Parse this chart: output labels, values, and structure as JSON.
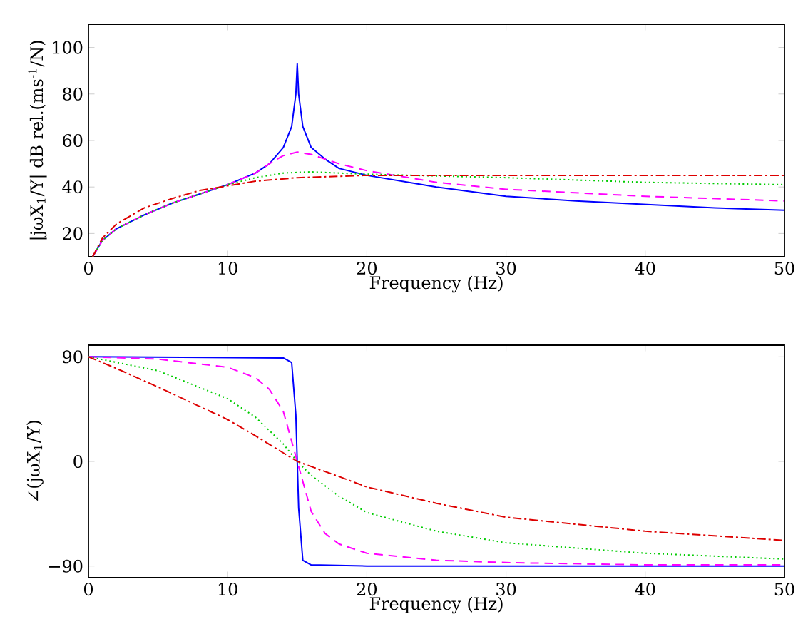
{
  "chart_data": [
    {
      "type": "line",
      "xlabel": "Frequency (Hz)",
      "ylabel": "|jωX$_{1}$/Y| dB rel.(ms$^{-1}$/N)",
      "xlim": [
        0,
        50
      ],
      "ylim": [
        10,
        110
      ],
      "xticks": [
        0,
        10,
        20,
        30,
        40,
        50
      ],
      "yticks": [
        20,
        40,
        60,
        80,
        100
      ],
      "series": [
        {
          "color": "#0000ff",
          "line_style": "solid",
          "x": [
            0.3,
            0.5,
            1,
            2,
            4,
            6,
            8,
            10,
            12,
            13,
            14,
            14.6,
            14.9,
            15,
            15.1,
            15.4,
            16,
            17,
            18,
            20,
            25,
            30,
            35,
            40,
            45,
            50
          ],
          "values": [
            10,
            12,
            17,
            22,
            28,
            33,
            37,
            41,
            46,
            50,
            57,
            66,
            80,
            93,
            80,
            66,
            57,
            52,
            48,
            45,
            40,
            36,
            34,
            32.5,
            31,
            30
          ]
        },
        {
          "color": "#ff00ff",
          "line_style": "dashed",
          "x": [
            0.3,
            0.5,
            1,
            2,
            4,
            6,
            8,
            10,
            12,
            13,
            14,
            15,
            16,
            17,
            18,
            20,
            25,
            30,
            40,
            50
          ],
          "values": [
            10,
            12,
            17,
            22,
            28,
            33,
            37,
            41,
            46,
            50,
            53.5,
            55,
            54,
            52,
            50,
            47,
            42,
            39,
            36,
            34
          ]
        },
        {
          "color": "#00cc00",
          "line_style": "dotted",
          "x": [
            0.3,
            1,
            2,
            4,
            6,
            8,
            10,
            12,
            14,
            16,
            18,
            20,
            30,
            40,
            50
          ],
          "values": [
            10,
            17,
            22,
            28,
            33,
            37,
            41,
            44,
            46,
            46.5,
            46,
            45.5,
            44,
            42,
            41
          ]
        },
        {
          "color": "#dd0000",
          "line_style": "dashdot",
          "x": [
            0.3,
            1,
            2,
            4,
            6,
            8,
            10,
            12,
            15,
            20,
            30,
            40,
            50
          ],
          "values": [
            10,
            18,
            24,
            31,
            35,
            38.5,
            40.5,
            42.5,
            44,
            45,
            45,
            45,
            45
          ]
        }
      ]
    },
    {
      "type": "line",
      "xlabel": "Frequency (Hz)",
      "ylabel": "∠(jωX$_{1}$/Y)",
      "xlim": [
        0,
        50
      ],
      "ylim": [
        -100,
        100
      ],
      "xticks": [
        0,
        10,
        20,
        30,
        40,
        50
      ],
      "yticks": [
        {
          "value": -90,
          "label": "−90"
        },
        0,
        90
      ],
      "series": [
        {
          "color": "#0000ff",
          "line_style": "solid",
          "x": [
            0,
            14,
            14.6,
            14.9,
            15,
            15.1,
            15.4,
            16,
            20,
            50
          ],
          "values": [
            90,
            89,
            85,
            40,
            0,
            -40,
            -85,
            -89,
            -90,
            -90
          ]
        },
        {
          "color": "#ff00ff",
          "line_style": "dashed",
          "x": [
            0,
            5,
            10,
            12,
            13,
            14,
            15,
            16,
            17,
            18,
            20,
            25,
            30,
            40,
            50
          ],
          "values": [
            90,
            88,
            81,
            72,
            62,
            43,
            0,
            -43,
            -62,
            -71,
            -79,
            -85,
            -87,
            -89,
            -89
          ]
        },
        {
          "color": "#00cc00",
          "line_style": "dotted",
          "x": [
            0,
            5,
            10,
            12,
            14,
            15,
            16,
            18,
            20,
            25,
            30,
            40,
            50
          ],
          "values": [
            90,
            78,
            54,
            38,
            15,
            0,
            -12,
            -30,
            -44,
            -60,
            -70,
            -79,
            -84
          ]
        },
        {
          "color": "#dd0000",
          "line_style": "dashdot",
          "x": [
            0,
            2,
            5,
            10,
            12,
            15,
            18,
            20,
            25,
            30,
            40,
            50
          ],
          "values": [
            90,
            80,
            64,
            36,
            22,
            0,
            -13,
            -22,
            -36,
            -48,
            -60,
            -68
          ]
        }
      ]
    }
  ]
}
